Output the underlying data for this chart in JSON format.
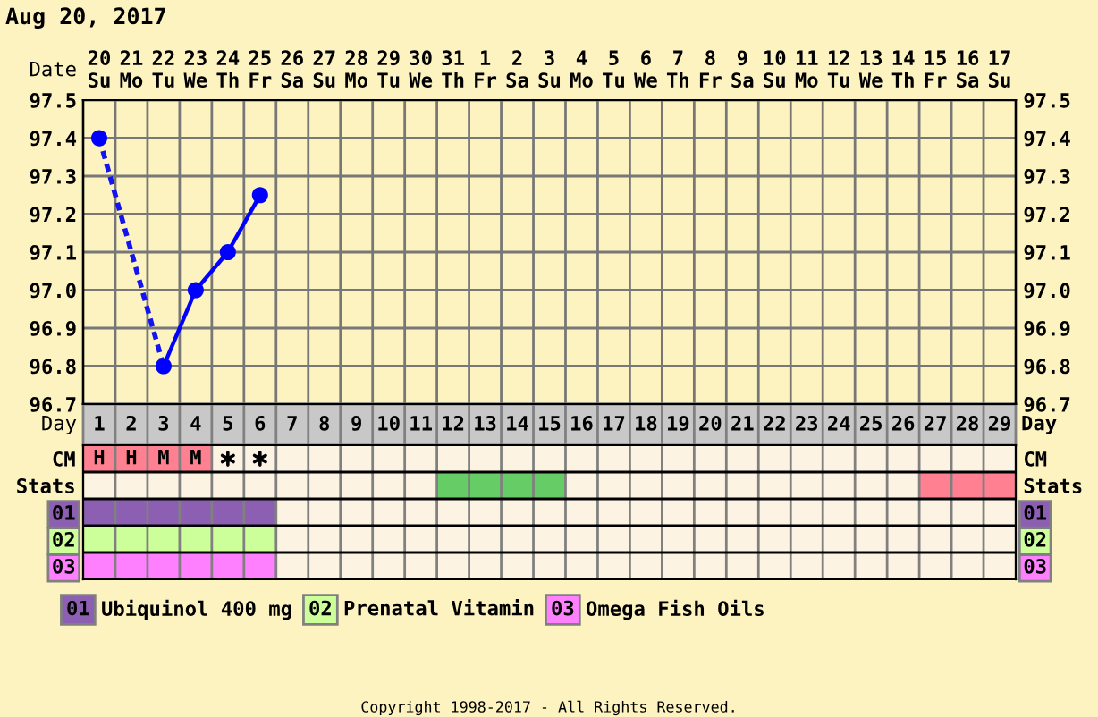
{
  "chart_data": [
    {
      "type": "line",
      "title": "Aug 20, 2017",
      "xlabel": "Day",
      "x2label": "Date",
      "xlim": [
        0.5,
        29.5
      ],
      "xticks": [
        1,
        2,
        3,
        4,
        5,
        6,
        7,
        8,
        9,
        10,
        11,
        12,
        13,
        14,
        15,
        16,
        17,
        18,
        19,
        20,
        21,
        22,
        23,
        24,
        25,
        26,
        27,
        28,
        29
      ],
      "x2lim": [
        "2017-08-19T12:00",
        "2017-09-17T12:00"
      ],
      "x2ticks": [
        {
          "value": "2017-08-20",
          "label": "20\nSu"
        },
        {
          "value": "2017-08-21",
          "label": "21\nMo"
        },
        {
          "value": "2017-08-22",
          "label": "22\nTu"
        },
        {
          "value": "2017-08-23",
          "label": "23\nWe"
        },
        {
          "value": "2017-08-24",
          "label": "24\nTh"
        },
        {
          "value": "2017-08-25",
          "label": "25\nFr"
        },
        {
          "value": "2017-08-26",
          "label": "26\nSa"
        },
        {
          "value": "2017-08-27",
          "label": "27\nSu"
        },
        {
          "value": "2017-08-28",
          "label": "28\nMo"
        },
        {
          "value": "2017-08-29",
          "label": "29\nTu"
        },
        {
          "value": "2017-08-30",
          "label": "30\nWe"
        },
        {
          "value": "2017-08-31",
          "label": "31\nTh"
        },
        {
          "value": "2017-09-01",
          "label": "1\nFr"
        },
        {
          "value": "2017-09-02",
          "label": "2\nSa"
        },
        {
          "value": "2017-09-03",
          "label": "3\nSu"
        },
        {
          "value": "2017-09-04",
          "label": "4\nMo"
        },
        {
          "value": "2017-09-05",
          "label": "5\nTu"
        },
        {
          "value": "2017-09-06",
          "label": "6\nWe"
        },
        {
          "value": "2017-09-07",
          "label": "7\nTh"
        },
        {
          "value": "2017-09-08",
          "label": "8\nFr"
        },
        {
          "value": "2017-09-09",
          "label": "9\nSa"
        },
        {
          "value": "2017-09-10",
          "label": "10\nSu"
        },
        {
          "value": "2017-09-11",
          "label": "11\nMo"
        },
        {
          "value": "2017-09-12",
          "label": "12\nTu"
        },
        {
          "value": "2017-09-13",
          "label": "13\nWe"
        },
        {
          "value": "2017-09-14",
          "label": "14\nTh"
        },
        {
          "value": "2017-09-15",
          "label": "15\nFr"
        },
        {
          "value": "2017-09-16",
          "label": "16\nSa"
        },
        {
          "value": "2017-09-17",
          "label": "17\nSu"
        }
      ],
      "ylim": [
        96.7,
        97.5
      ],
      "yticks": [
        96.7,
        96.8,
        96.9,
        {
          "value": 97,
          "label": "97.0"
        },
        97.1,
        97.2,
        97.3,
        97.4,
        97.5
      ],
      "y2lim": [
        96.7,
        97.5
      ],
      "y2ticks": [
        96.7,
        96.8,
        96.9,
        {
          "value": 97,
          "label": "97.0"
        },
        97.1,
        97.2,
        97.3,
        97.4,
        97.5
      ],
      "grid": true,
      "marker": "circle",
      "series": [
        {
          "color": "#0000ff",
          "x": [
            1,
            2,
            3,
            4,
            5,
            6
          ],
          "values": [
            97.4,
            null,
            96.8,
            97.0,
            97.1,
            97.25
          ]
        },
        {
          "color": "#1414f0",
          "x": [
            1,
            3
          ],
          "values": [
            97.4,
            96.8
          ],
          "marker": "none",
          "line_style": "dotted"
        }
      ]
    },
    {
      "type": "bar",
      "orientation": "horizontal",
      "categories": [
        "CM",
        "Stats",
        "01",
        "02",
        "03"
      ],
      "y2_categories": [
        "CM",
        "Stats",
        "01",
        "02",
        "03"
      ],
      "xlim": [
        0.5,
        29.5
      ],
      "tick_labels": "y",
      "grid": true,
      "legend": "bottom",
      "series": [
        {
          "color": "#ff8091",
          "values": [
            4,
            null,
            null,
            null,
            null
          ],
          "base": [
            0.5,
            null,
            null,
            null,
            null
          ]
        },
        {
          "color": "#66cc66",
          "values": [
            null,
            4,
            null,
            null,
            null
          ],
          "base": [
            null,
            11.5,
            null,
            null,
            null
          ]
        },
        {
          "color": "#ff8091",
          "values": [
            null,
            3,
            null,
            null,
            null
          ],
          "base": [
            null,
            26.5,
            null,
            null,
            null
          ]
        },
        {
          "name": "Ubiquinol 400 mg",
          "color": "#8d5fb3",
          "values": [
            null,
            null,
            6,
            null,
            null
          ],
          "base": [
            null,
            null,
            0.5,
            null,
            null
          ]
        },
        {
          "name": "Prenatal Vitamin",
          "color": "#ccff99",
          "values": [
            null,
            null,
            null,
            6,
            null
          ],
          "base": [
            null,
            null,
            null,
            0.5,
            null
          ]
        },
        {
          "name": "Omega Fish Oils",
          "color": "#ff80ff",
          "values": [
            null,
            null,
            null,
            null,
            6
          ],
          "base": [
            null,
            null,
            null,
            null,
            0.5
          ]
        },
        {
          "type": "scatter",
          "color": "#000000",
          "marker": "cross",
          "x": [
            "CM",
            "CM"
          ],
          "values": [
            5,
            6
          ]
        }
      ],
      "annotations": [
        {
          "text": "H",
          "x": 1,
          "y": "CM"
        },
        {
          "text": "H",
          "x": 2,
          "y": "CM"
        },
        {
          "text": "M",
          "x": 3,
          "y": "CM"
        },
        {
          "text": "M",
          "x": 4,
          "y": "CM"
        },
        "Copyright 1998-2017 - All Rights Reserved."
      ]
    }
  ]
}
